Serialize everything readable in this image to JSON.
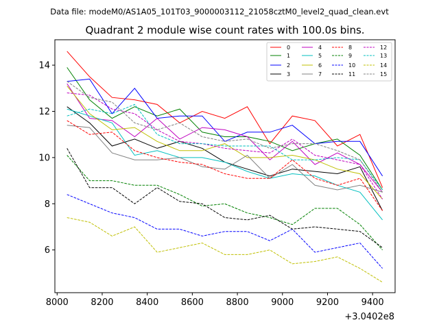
{
  "figure": {
    "suptitle": "Data file: modeM0/AS1A05_101T03_9000003112_21058cztM0_level2_quad_clean.evt"
  },
  "chart_data": {
    "type": "line",
    "title": "Quadrant 2 module wise count rates with 100.0s bins.",
    "xlabel": "",
    "ylabel": "",
    "x_offset_label": "+3.0402e8",
    "xlim": [
      7990,
      9500
    ],
    "ylim": [
      4.15,
      15.1
    ],
    "xticks": [
      8000,
      8200,
      8400,
      8600,
      8800,
      9000,
      9200,
      9400
    ],
    "yticks": [
      6,
      8,
      10,
      12,
      14
    ],
    "legend_position": "top-right",
    "x": [
      8044,
      8144,
      8244,
      8344,
      8444,
      8544,
      8644,
      8744,
      8844,
      8944,
      9044,
      9144,
      9244,
      9344,
      9444
    ],
    "series": [
      {
        "name": "0",
        "color": "#ff0000",
        "dash": "solid",
        "values": [
          14.6,
          13.5,
          12.6,
          12.5,
          12.3,
          11.5,
          12.0,
          11.7,
          12.2,
          10.6,
          11.8,
          11.6,
          10.5,
          11.0,
          8.7
        ]
      },
      {
        "name": "1",
        "color": "#008000",
        "dash": "solid",
        "values": [
          13.9,
          12.5,
          11.7,
          12.2,
          11.8,
          12.1,
          11.1,
          10.9,
          10.9,
          10.7,
          10.3,
          10.6,
          10.8,
          10.1,
          8.6
        ]
      },
      {
        "name": "2",
        "color": "#0000ff",
        "dash": "solid",
        "values": [
          13.3,
          13.4,
          11.9,
          13.0,
          11.7,
          11.8,
          11.8,
          10.7,
          11.1,
          11.1,
          11.4,
          10.6,
          10.7,
          10.7,
          9.2
        ]
      },
      {
        "name": "3",
        "color": "#000000",
        "dash": "solid",
        "values": [
          12.2,
          11.5,
          10.5,
          10.8,
          10.4,
          10.7,
          10.4,
          9.8,
          9.5,
          9.2,
          9.5,
          9.4,
          9.3,
          9.6,
          7.7
        ]
      },
      {
        "name": "4",
        "color": "#bf00bf",
        "dash": "solid",
        "values": [
          13.2,
          11.7,
          11.6,
          10.9,
          11.7,
          10.8,
          11.3,
          11.2,
          10.9,
          9.9,
          10.7,
          9.7,
          10.2,
          9.7,
          8.5
        ]
      },
      {
        "name": "5",
        "color": "#00bfbf",
        "dash": "solid",
        "values": [
          12.1,
          11.8,
          11.5,
          10.1,
          10.3,
          10.0,
          10.0,
          9.8,
          9.4,
          9.1,
          9.3,
          9.2,
          8.8,
          8.5,
          7.3
        ]
      },
      {
        "name": "6",
        "color": "#bfbf00",
        "dash": "solid",
        "values": [
          13.1,
          11.9,
          11.2,
          11.3,
          10.7,
          10.3,
          10.3,
          10.6,
          10.0,
          10.0,
          10.1,
          9.9,
          9.5,
          9.3,
          8.2
        ]
      },
      {
        "name": "7",
        "color": "#808080",
        "dash": "solid",
        "values": [
          11.4,
          11.3,
          10.2,
          9.9,
          9.9,
          10.0,
          9.6,
          9.5,
          10.1,
          9.1,
          9.7,
          8.8,
          8.6,
          8.8,
          8.5
        ]
      },
      {
        "name": "8",
        "color": "#ff0000",
        "dash": "dashed",
        "values": [
          11.6,
          11.0,
          11.1,
          10.3,
          10.0,
          9.8,
          9.7,
          9.3,
          9.1,
          9.1,
          9.9,
          9.1,
          8.8,
          9.1,
          7.7
        ]
      },
      {
        "name": "9",
        "color": "#008000",
        "dash": "dashed",
        "values": [
          10.1,
          9.0,
          9.0,
          8.8,
          8.8,
          8.4,
          7.9,
          8.0,
          7.6,
          7.4,
          7.1,
          7.8,
          7.8,
          7.1,
          6.0
        ]
      },
      {
        "name": "10",
        "color": "#0000ff",
        "dash": "dashed",
        "values": [
          8.4,
          8.0,
          7.6,
          7.4,
          6.9,
          6.9,
          6.6,
          6.8,
          6.8,
          6.4,
          6.9,
          5.9,
          6.1,
          6.3,
          5.2
        ]
      },
      {
        "name": "11",
        "color": "#000000",
        "dash": "dashed",
        "values": [
          10.4,
          8.7,
          8.7,
          8.0,
          8.7,
          8.1,
          8.0,
          7.4,
          7.3,
          7.5,
          6.9,
          7.0,
          6.9,
          6.8,
          6.1
        ]
      },
      {
        "name": "12",
        "color": "#bf00bf",
        "dash": "dashed",
        "values": [
          12.8,
          12.7,
          12.1,
          11.9,
          11.2,
          10.7,
          10.6,
          10.4,
          10.3,
          10.2,
          10.8,
          10.1,
          9.9,
          9.7,
          8.2
        ]
      },
      {
        "name": "13",
        "color": "#00bfbf",
        "dash": "dashed",
        "values": [
          11.8,
          12.1,
          11.9,
          12.3,
          11.0,
          10.6,
          10.6,
          10.5,
          10.5,
          10.5,
          9.9,
          9.9,
          10.0,
          9.9,
          8.6
        ]
      },
      {
        "name": "14",
        "color": "#bfbf00",
        "dash": "dashed",
        "values": [
          7.4,
          7.2,
          6.6,
          7.0,
          5.9,
          6.1,
          6.3,
          5.8,
          5.8,
          6.0,
          5.4,
          5.5,
          5.7,
          5.2,
          4.6
        ]
      },
      {
        "name": "15",
        "color": "#808080",
        "dash": "dashed",
        "values": [
          13.3,
          12.6,
          12.4,
          11.5,
          11.2,
          11.5,
          10.9,
          10.7,
          10.8,
          10.4,
          10.6,
          10.6,
          10.3,
          9.9,
          8.5
        ]
      }
    ]
  }
}
